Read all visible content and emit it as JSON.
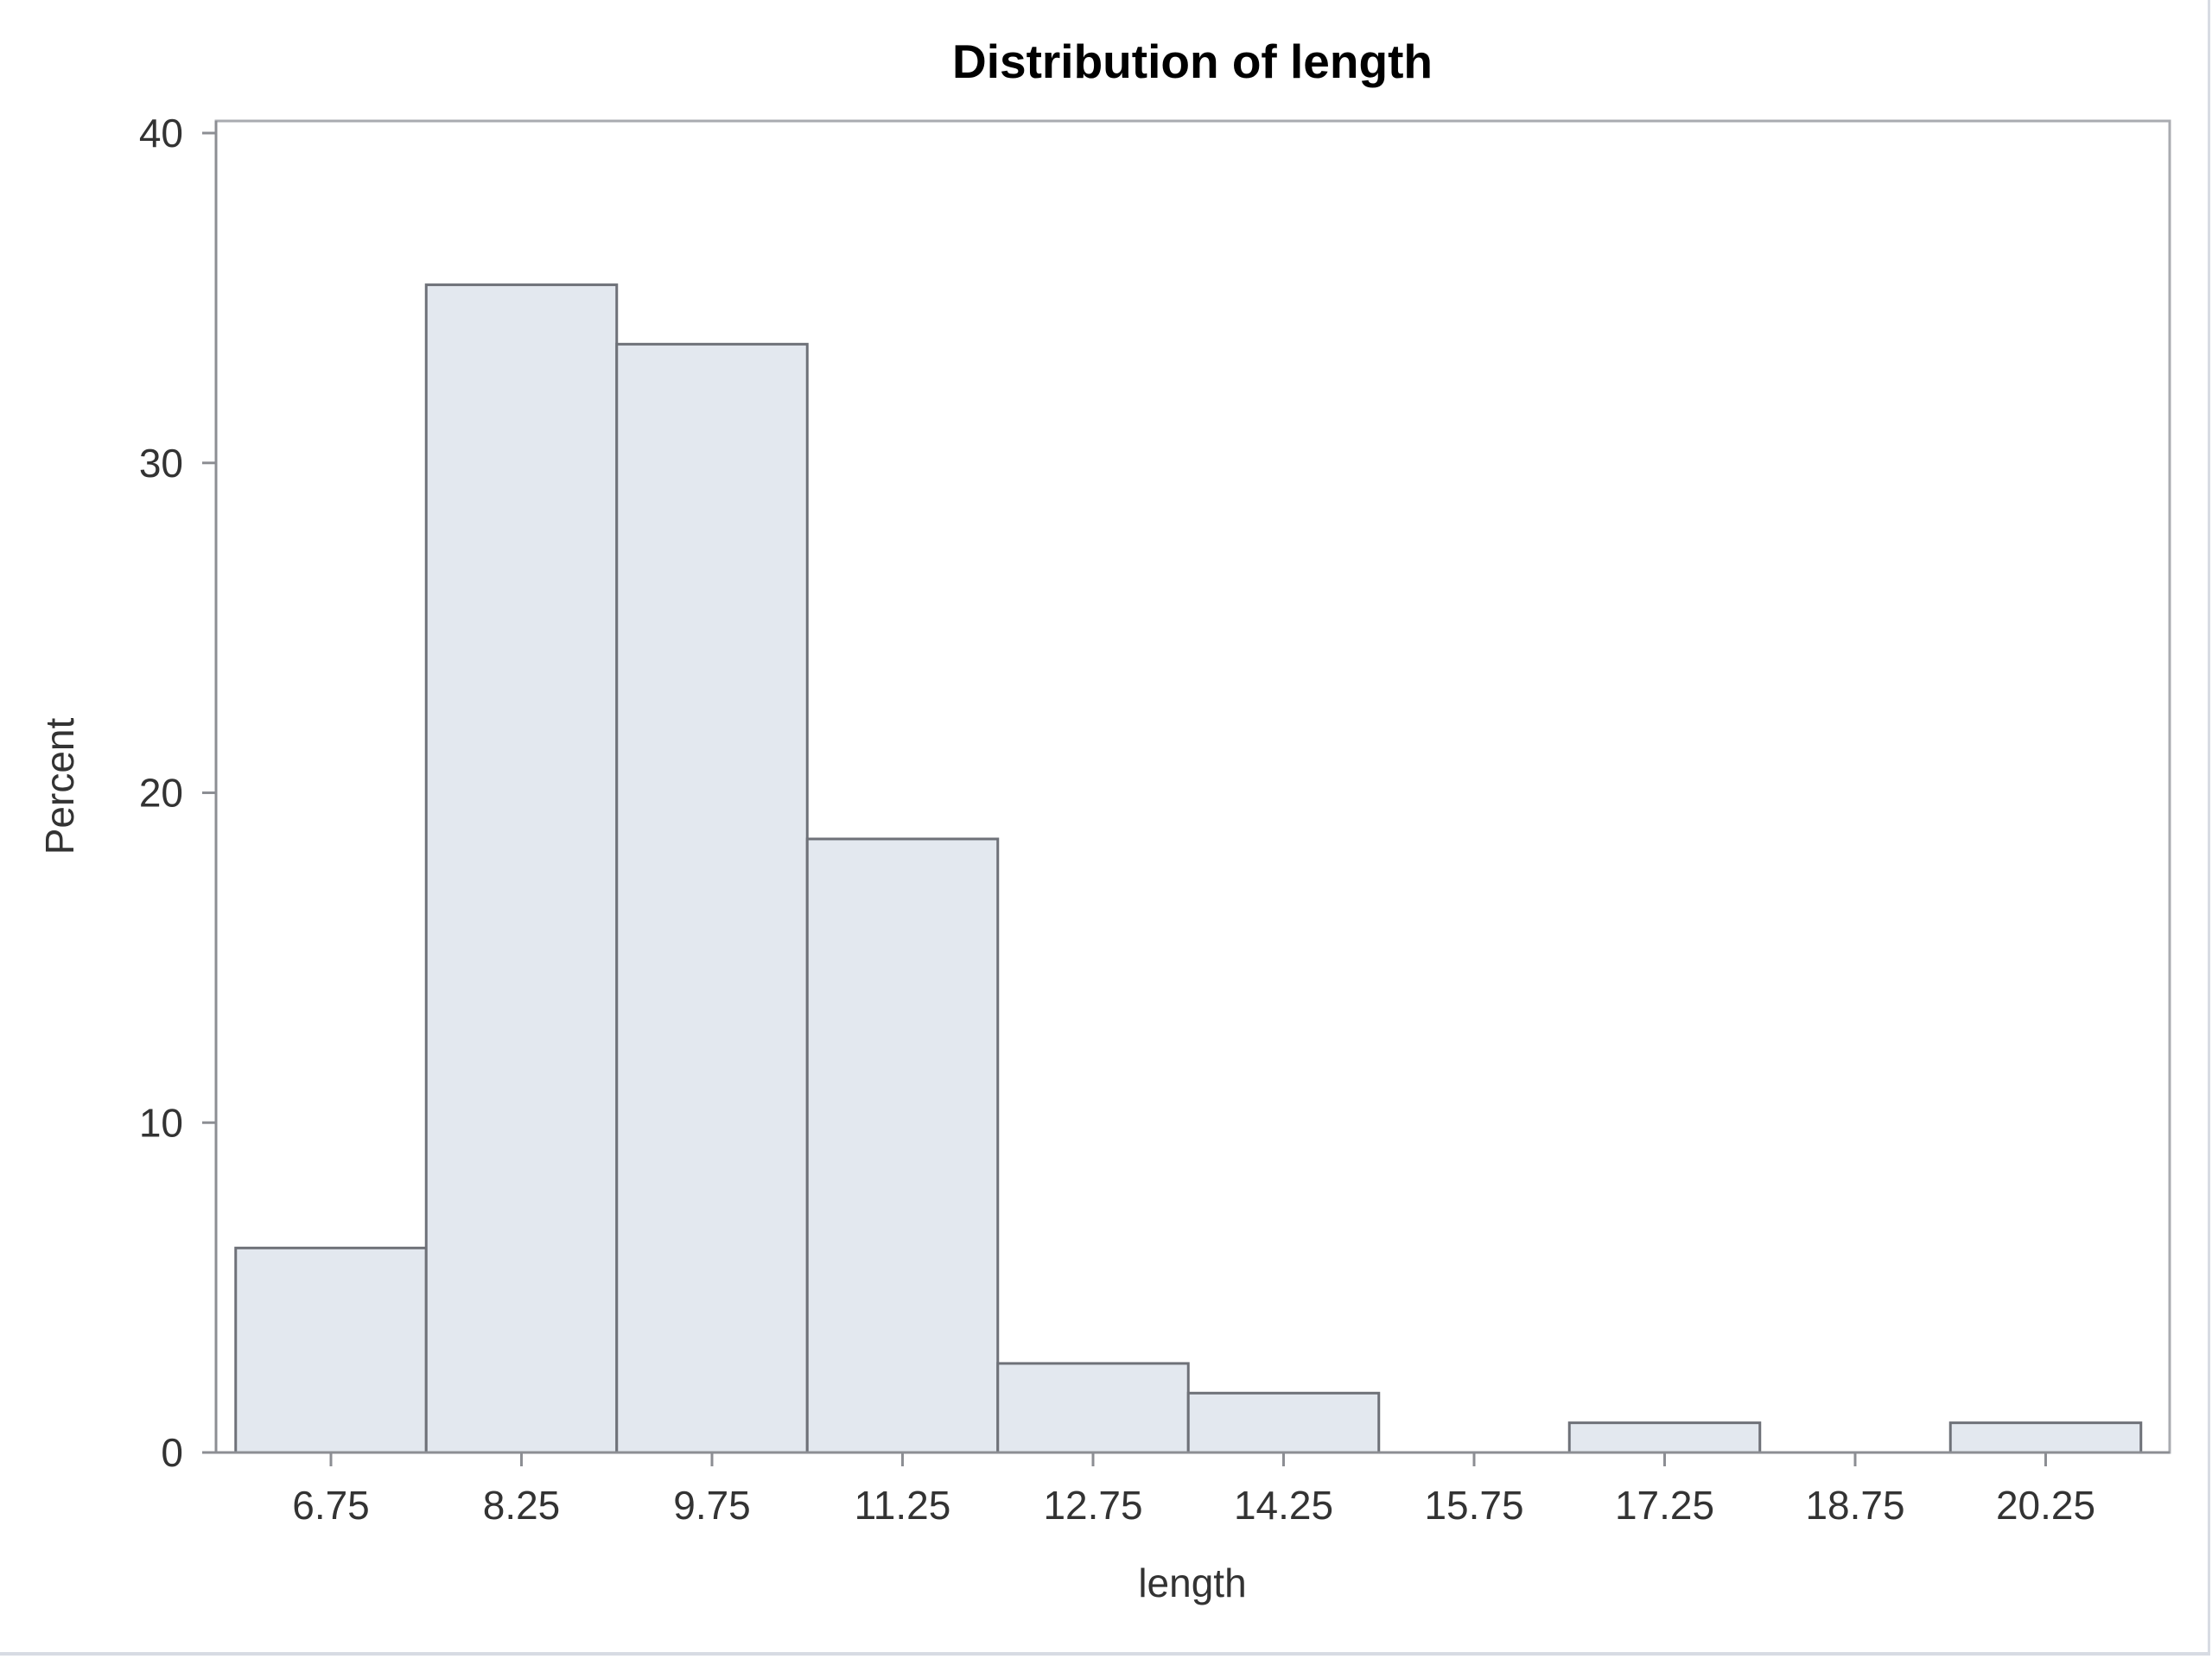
{
  "chart_data": {
    "type": "bar",
    "title": "Distribution of length",
    "xlabel": "length",
    "ylabel": "Percent",
    "bin_width": 1.5,
    "x_ticks": [
      "6.75",
      "8.25",
      "9.75",
      "11.25",
      "12.75",
      "14.25",
      "15.75",
      "17.25",
      "18.75",
      "20.25"
    ],
    "y_ticks": [
      "0",
      "10",
      "20",
      "30",
      "40"
    ],
    "ylim": [
      0,
      40
    ],
    "categories": [
      6.75,
      8.25,
      9.75,
      11.25,
      12.75,
      14.25,
      15.75,
      17.25,
      18.75,
      20.25
    ],
    "values": [
      6.2,
      35.4,
      33.6,
      18.6,
      2.7,
      1.8,
      0,
      0.9,
      0,
      0.9
    ],
    "grid": false,
    "legend": "none",
    "colors": {
      "bar_fill": "#e3e8ef",
      "bar_stroke": "#6e7178",
      "frame": "#a9abb0",
      "axis": "#8c8e93"
    }
  }
}
